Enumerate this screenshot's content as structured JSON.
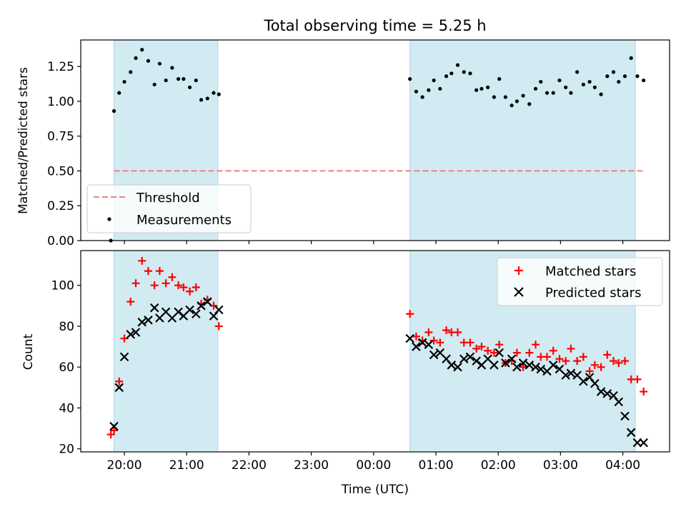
{
  "figure": {
    "title": "Total observing time = 5.25 h"
  },
  "chart_data": [
    {
      "type": "scatter",
      "panel": "top",
      "title": "Total observing time = 5.25 h",
      "xlabel": "",
      "ylabel": "Matched/Predicted stars",
      "x_unit": "hours since 00:00 UTC (negative = previous evening)",
      "xlim": [
        -4.7,
        4.75
      ],
      "ylim": [
        0.0,
        1.44
      ],
      "yticks": [
        "0.00",
        "0.25",
        "0.50",
        "0.75",
        "1.00",
        "1.25"
      ],
      "grid": false,
      "legend_position": "lower-left",
      "shaded_intervals": [
        {
          "start": "19:50",
          "end": "21:30",
          "color": "#add8e6"
        },
        {
          "start": "00:35",
          "end": "04:12",
          "color": "#add8e6"
        }
      ],
      "threshold": {
        "name": "Threshold",
        "value": 0.5,
        "x_start": "19:50",
        "x_end": "04:20",
        "color": "#f08080",
        "style": "dashed"
      },
      "series": [
        {
          "name": "Measurements",
          "color": "#000000",
          "marker": "dot",
          "x": [
            "19:47",
            "19:50",
            "19:55",
            "20:00",
            "20:06",
            "20:11",
            "20:17",
            "20:23",
            "20:29",
            "20:34",
            "20:40",
            "20:46",
            "20:52",
            "20:57",
            "21:03",
            "21:09",
            "21:14",
            "21:20",
            "21:26",
            "21:31",
            "00:35",
            "00:41",
            "00:47",
            "00:53",
            "00:58",
            "01:04",
            "01:10",
            "01:15",
            "01:21",
            "01:27",
            "01:33",
            "01:39",
            "01:44",
            "01:50",
            "01:56",
            "02:01",
            "02:07",
            "02:13",
            "02:18",
            "02:24",
            "02:30",
            "02:36",
            "02:41",
            "02:47",
            "02:53",
            "02:59",
            "03:05",
            "03:10",
            "03:16",
            "03:22",
            "03:28",
            "03:33",
            "03:39",
            "03:45",
            "03:51",
            "03:56",
            "04:02",
            "04:08",
            "04:14",
            "04:20"
          ],
          "y": [
            0.0,
            0.93,
            1.06,
            1.14,
            1.21,
            1.31,
            1.37,
            1.29,
            1.12,
            1.27,
            1.15,
            1.24,
            1.16,
            1.16,
            1.1,
            1.15,
            1.01,
            1.02,
            1.06,
            1.05,
            1.16,
            1.07,
            1.03,
            1.08,
            1.15,
            1.09,
            1.18,
            1.2,
            1.26,
            1.21,
            1.2,
            1.08,
            1.09,
            1.1,
            1.03,
            1.16,
            1.03,
            0.97,
            1.0,
            1.04,
            0.98,
            1.09,
            1.14,
            1.06,
            1.06,
            1.15,
            1.1,
            1.06,
            1.21,
            1.12,
            1.14,
            1.1,
            1.05,
            1.18,
            1.21,
            1.14,
            1.18,
            1.31,
            1.18,
            1.15
          ]
        }
      ],
      "legend": [
        "Threshold",
        "Measurements"
      ]
    },
    {
      "type": "scatter",
      "panel": "bottom",
      "title": "",
      "xlabel": "Time (UTC)",
      "ylabel": "Count",
      "x_unit": "hours since 00:00 UTC (negative = previous evening)",
      "xlim": [
        -4.7,
        4.75
      ],
      "ylim": [
        18.5,
        117
      ],
      "yticks": [
        "20",
        "40",
        "60",
        "80",
        "100"
      ],
      "xticks": [
        "20:00",
        "21:00",
        "22:00",
        "23:00",
        "00:00",
        "01:00",
        "02:00",
        "03:00",
        "04:00"
      ],
      "grid": false,
      "legend_position": "top-right",
      "shaded_intervals": [
        {
          "start": "19:50",
          "end": "21:30",
          "color": "#add8e6"
        },
        {
          "start": "00:35",
          "end": "04:12",
          "color": "#add8e6"
        }
      ],
      "series": [
        {
          "name": "Matched stars",
          "color": "#ff0000",
          "marker": "plus",
          "x": [
            "19:47",
            "19:50",
            "19:55",
            "20:00",
            "20:06",
            "20:11",
            "20:17",
            "20:23",
            "20:29",
            "20:34",
            "20:40",
            "20:46",
            "20:52",
            "20:57",
            "21:03",
            "21:09",
            "21:14",
            "21:20",
            "21:26",
            "21:31",
            "00:35",
            "00:41",
            "00:47",
            "00:53",
            "00:58",
            "01:04",
            "01:10",
            "01:15",
            "01:21",
            "01:27",
            "01:33",
            "01:39",
            "01:44",
            "01:50",
            "01:56",
            "02:01",
            "02:07",
            "02:13",
            "02:18",
            "02:24",
            "02:30",
            "02:36",
            "02:41",
            "02:47",
            "02:53",
            "02:59",
            "03:05",
            "03:10",
            "03:16",
            "03:22",
            "03:28",
            "03:33",
            "03:39",
            "03:45",
            "03:51",
            "03:56",
            "04:02",
            "04:08",
            "04:14",
            "04:20"
          ],
          "y": [
            27,
            29,
            53,
            74,
            92,
            101,
            112,
            107,
            100,
            107,
            101,
            104,
            100,
            99,
            97,
            99,
            91,
            93,
            90,
            80,
            86,
            75,
            73,
            77,
            73,
            72,
            78,
            77,
            77,
            72,
            72,
            69,
            70,
            68,
            67,
            71,
            62,
            63,
            67,
            60,
            67,
            71,
            65,
            65,
            68,
            64,
            63,
            69,
            63,
            65,
            58,
            61,
            60,
            66,
            63,
            62,
            63,
            54,
            54,
            48
          ]
        },
        {
          "name": "Predicted stars",
          "color": "#000000",
          "marker": "x",
          "x": [
            "19:50",
            "19:55",
            "20:00",
            "20:06",
            "20:11",
            "20:17",
            "20:23",
            "20:29",
            "20:34",
            "20:40",
            "20:46",
            "20:52",
            "20:57",
            "21:03",
            "21:09",
            "21:14",
            "21:20",
            "21:26",
            "21:31",
            "00:35",
            "00:41",
            "00:47",
            "00:53",
            "00:58",
            "01:04",
            "01:10",
            "01:15",
            "01:21",
            "01:27",
            "01:33",
            "01:39",
            "01:44",
            "01:50",
            "01:56",
            "02:01",
            "02:07",
            "02:13",
            "02:18",
            "02:24",
            "02:30",
            "02:36",
            "02:41",
            "02:47",
            "02:53",
            "02:59",
            "03:05",
            "03:10",
            "03:16",
            "03:22",
            "03:28",
            "03:33",
            "03:39",
            "03:45",
            "03:51",
            "03:56",
            "04:02",
            "04:08",
            "04:14",
            "04:20"
          ],
          "y": [
            31,
            50,
            65,
            76,
            77,
            82,
            83,
            89,
            84,
            87,
            84,
            87,
            85,
            88,
            86,
            90,
            92,
            85,
            88,
            74,
            70,
            72,
            71,
            66,
            67,
            64,
            61,
            60,
            64,
            65,
            63,
            61,
            64,
            61,
            67,
            62,
            64,
            60,
            62,
            61,
            60,
            59,
            58,
            61,
            59,
            56,
            57,
            56,
            53,
            55,
            52,
            48,
            47,
            46,
            43,
            36,
            28,
            23,
            23
          ]
        }
      ],
      "legend": [
        "Matched stars",
        "Predicted stars"
      ]
    }
  ]
}
